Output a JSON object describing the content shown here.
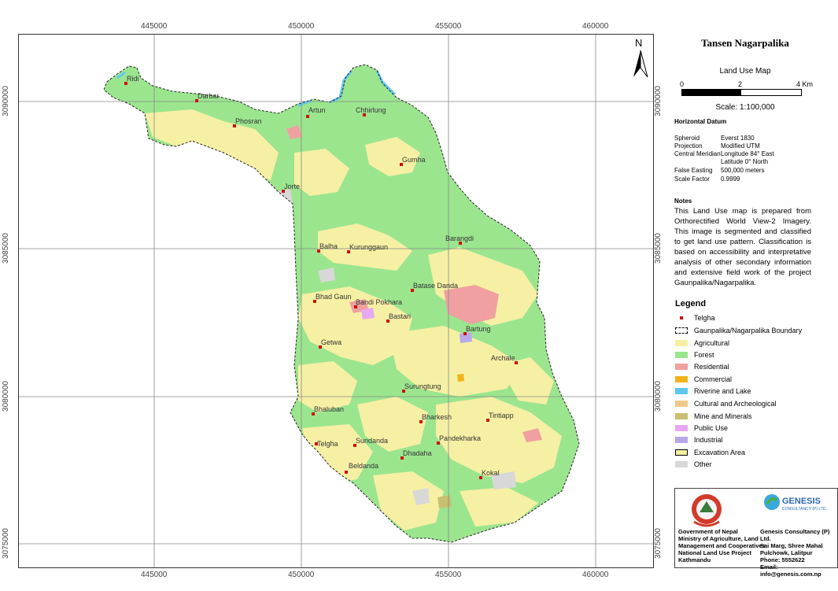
{
  "map": {
    "title": "Tansen Nagarpalika",
    "subtitle": "Land Use Map",
    "north_label": "N",
    "scale_bar": {
      "labels": [
        "0",
        "2",
        "4 Km"
      ]
    },
    "scale_text": "Scale: 1:100,000",
    "easting_ticks": [
      "445000",
      "450000",
      "455000",
      "460000"
    ],
    "northing_ticks": [
      "3090000",
      "3085000",
      "3080000",
      "3075000"
    ],
    "places": [
      "Ridi",
      "Darbar",
      "Phosran",
      "Artun",
      "Chhirlung",
      "Gumha",
      "Jorte",
      "Balha",
      "Kurunggaun",
      "Barangdi",
      "Batase Danda",
      "Bhad Gaun",
      "Bandi Pokhara",
      "Bastari",
      "Bartung",
      "Getwa",
      "Archale",
      "Surungtung",
      "Bhaluban",
      "Bharkesh",
      "Tintiapp",
      "Sundanda",
      "Pandekharka",
      "Telgha",
      "Dhadaha",
      "Beldanda",
      "Kokal"
    ]
  },
  "datum": {
    "heading": "Horizontal Datum",
    "rows": [
      {
        "k": "Spheroid",
        "v": "Everst 1830"
      },
      {
        "k": "Projection",
        "v": "Modified UTM"
      },
      {
        "k": "Central Meridian",
        "v": "Longitude 84° East"
      },
      {
        "k": "",
        "v": "Latitude 0° North"
      },
      {
        "k": "False Easting",
        "v": "500,000 meters"
      },
      {
        "k": "Scale Factor",
        "v": "0.9999"
      }
    ]
  },
  "notes": {
    "heading": "Notes",
    "text": "This Land Use map is prepared from Orthorectified World View-2 Imagery. This image is segmented and classified to get land use pattern. Classification is based on accessibility and interpretative analysis of other secondary information and extensive field work of the project Gaunpalika/Nagarpalika."
  },
  "legend": {
    "title": "Legend",
    "items": [
      {
        "label": "Telgha",
        "color": "#d01010",
        "kind": "dot"
      },
      {
        "label": "Gaunpalika/Nagarpalika Boundary",
        "color": "#000000",
        "kind": "boundary"
      },
      {
        "label": "Agricultural",
        "color": "#f6f0a4",
        "kind": "fill"
      },
      {
        "label": "Forest",
        "color": "#9be58f",
        "kind": "fill"
      },
      {
        "label": "Residential",
        "color": "#f0a0a0",
        "kind": "fill"
      },
      {
        "label": "Commercial",
        "color": "#f2b21a",
        "kind": "fill"
      },
      {
        "label": "Riverine and Lake",
        "color": "#5ec8f0",
        "kind": "fill"
      },
      {
        "label": "Cultural and Archeological",
        "color": "#f0c88a",
        "kind": "fill"
      },
      {
        "label": "Mine and Minerals",
        "color": "#c8c070",
        "kind": "fill"
      },
      {
        "label": "Public Use",
        "color": "#e6a8f0",
        "kind": "fill"
      },
      {
        "label": "Industrial",
        "color": "#b8a8e8",
        "kind": "fill"
      },
      {
        "label": "Excavation Area",
        "color": "#f6f0a4",
        "kind": "excavation"
      },
      {
        "label": "Other",
        "color": "#d8d8d8",
        "kind": "fill"
      }
    ]
  },
  "credits": {
    "gov": [
      "Government of Nepal",
      "Ministry of Agriculture, Land",
      "Management and Cooperatives",
      "National Land Use Project",
      "Kathmandu"
    ],
    "company_logo": "GENESIS",
    "company_logo_sub": "CONSULTANCY (P) LTD.",
    "company": [
      "Genesis Consultancy (P) Ltd.",
      "Sai Marg, Shree Mahal",
      "Pulchowk, Lalitpur",
      "Phone: 5552622",
      "Email: info@genesis.com.np"
    ]
  }
}
